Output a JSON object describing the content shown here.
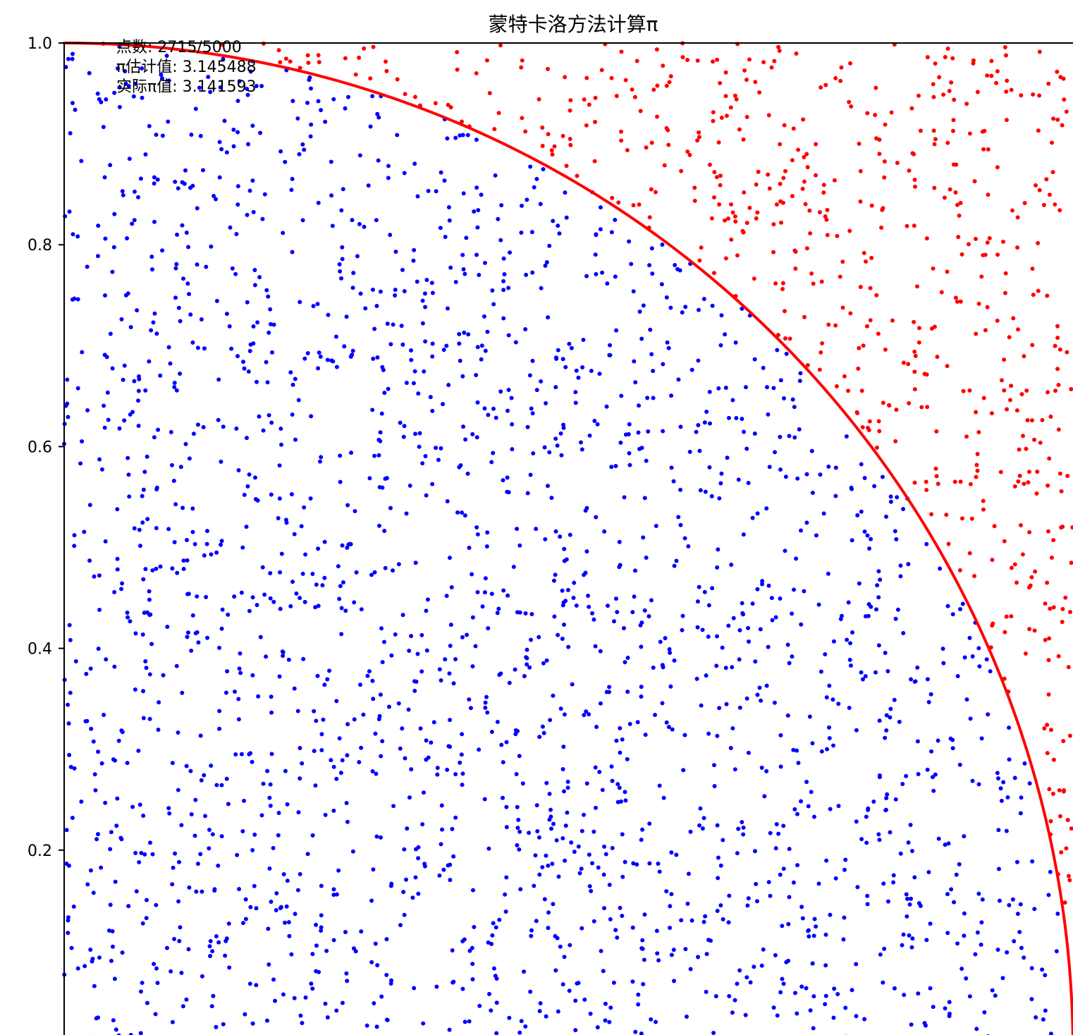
{
  "chart_data": {
    "type": "scatter",
    "title": "蒙特卡洛方法计算π",
    "xlabel": "",
    "ylabel": "",
    "xlim": [
      0,
      1
    ],
    "ylim": [
      0,
      1
    ],
    "yticks": [
      {
        "value": 1.0,
        "label": "1.0"
      },
      {
        "value": 0.8,
        "label": "0.8"
      },
      {
        "value": 0.6,
        "label": "0.6"
      },
      {
        "value": 0.4,
        "label": "0.4"
      },
      {
        "value": 0.2,
        "label": "0.2"
      }
    ],
    "annotations": [
      "点数: 2715/5000",
      "π估计值: 3.145488",
      "实际π值: 3.141593"
    ],
    "curve": {
      "name": "",
      "equation": "y = sqrt(1 - x^2)",
      "color": "#ff0000"
    },
    "series": [
      {
        "name": "",
        "color": "#0000ff",
        "point_count": 2135,
        "rule": "x^2 + y^2 <= 1"
      },
      {
        "name": "",
        "color": "#ff0000",
        "point_count": 580,
        "rule": "x^2 + y^2 > 1"
      }
    ],
    "grid": false,
    "legend": "none"
  },
  "colors": {
    "inside": "#0000ff",
    "outside": "#ff0000",
    "axis": "#000000"
  }
}
